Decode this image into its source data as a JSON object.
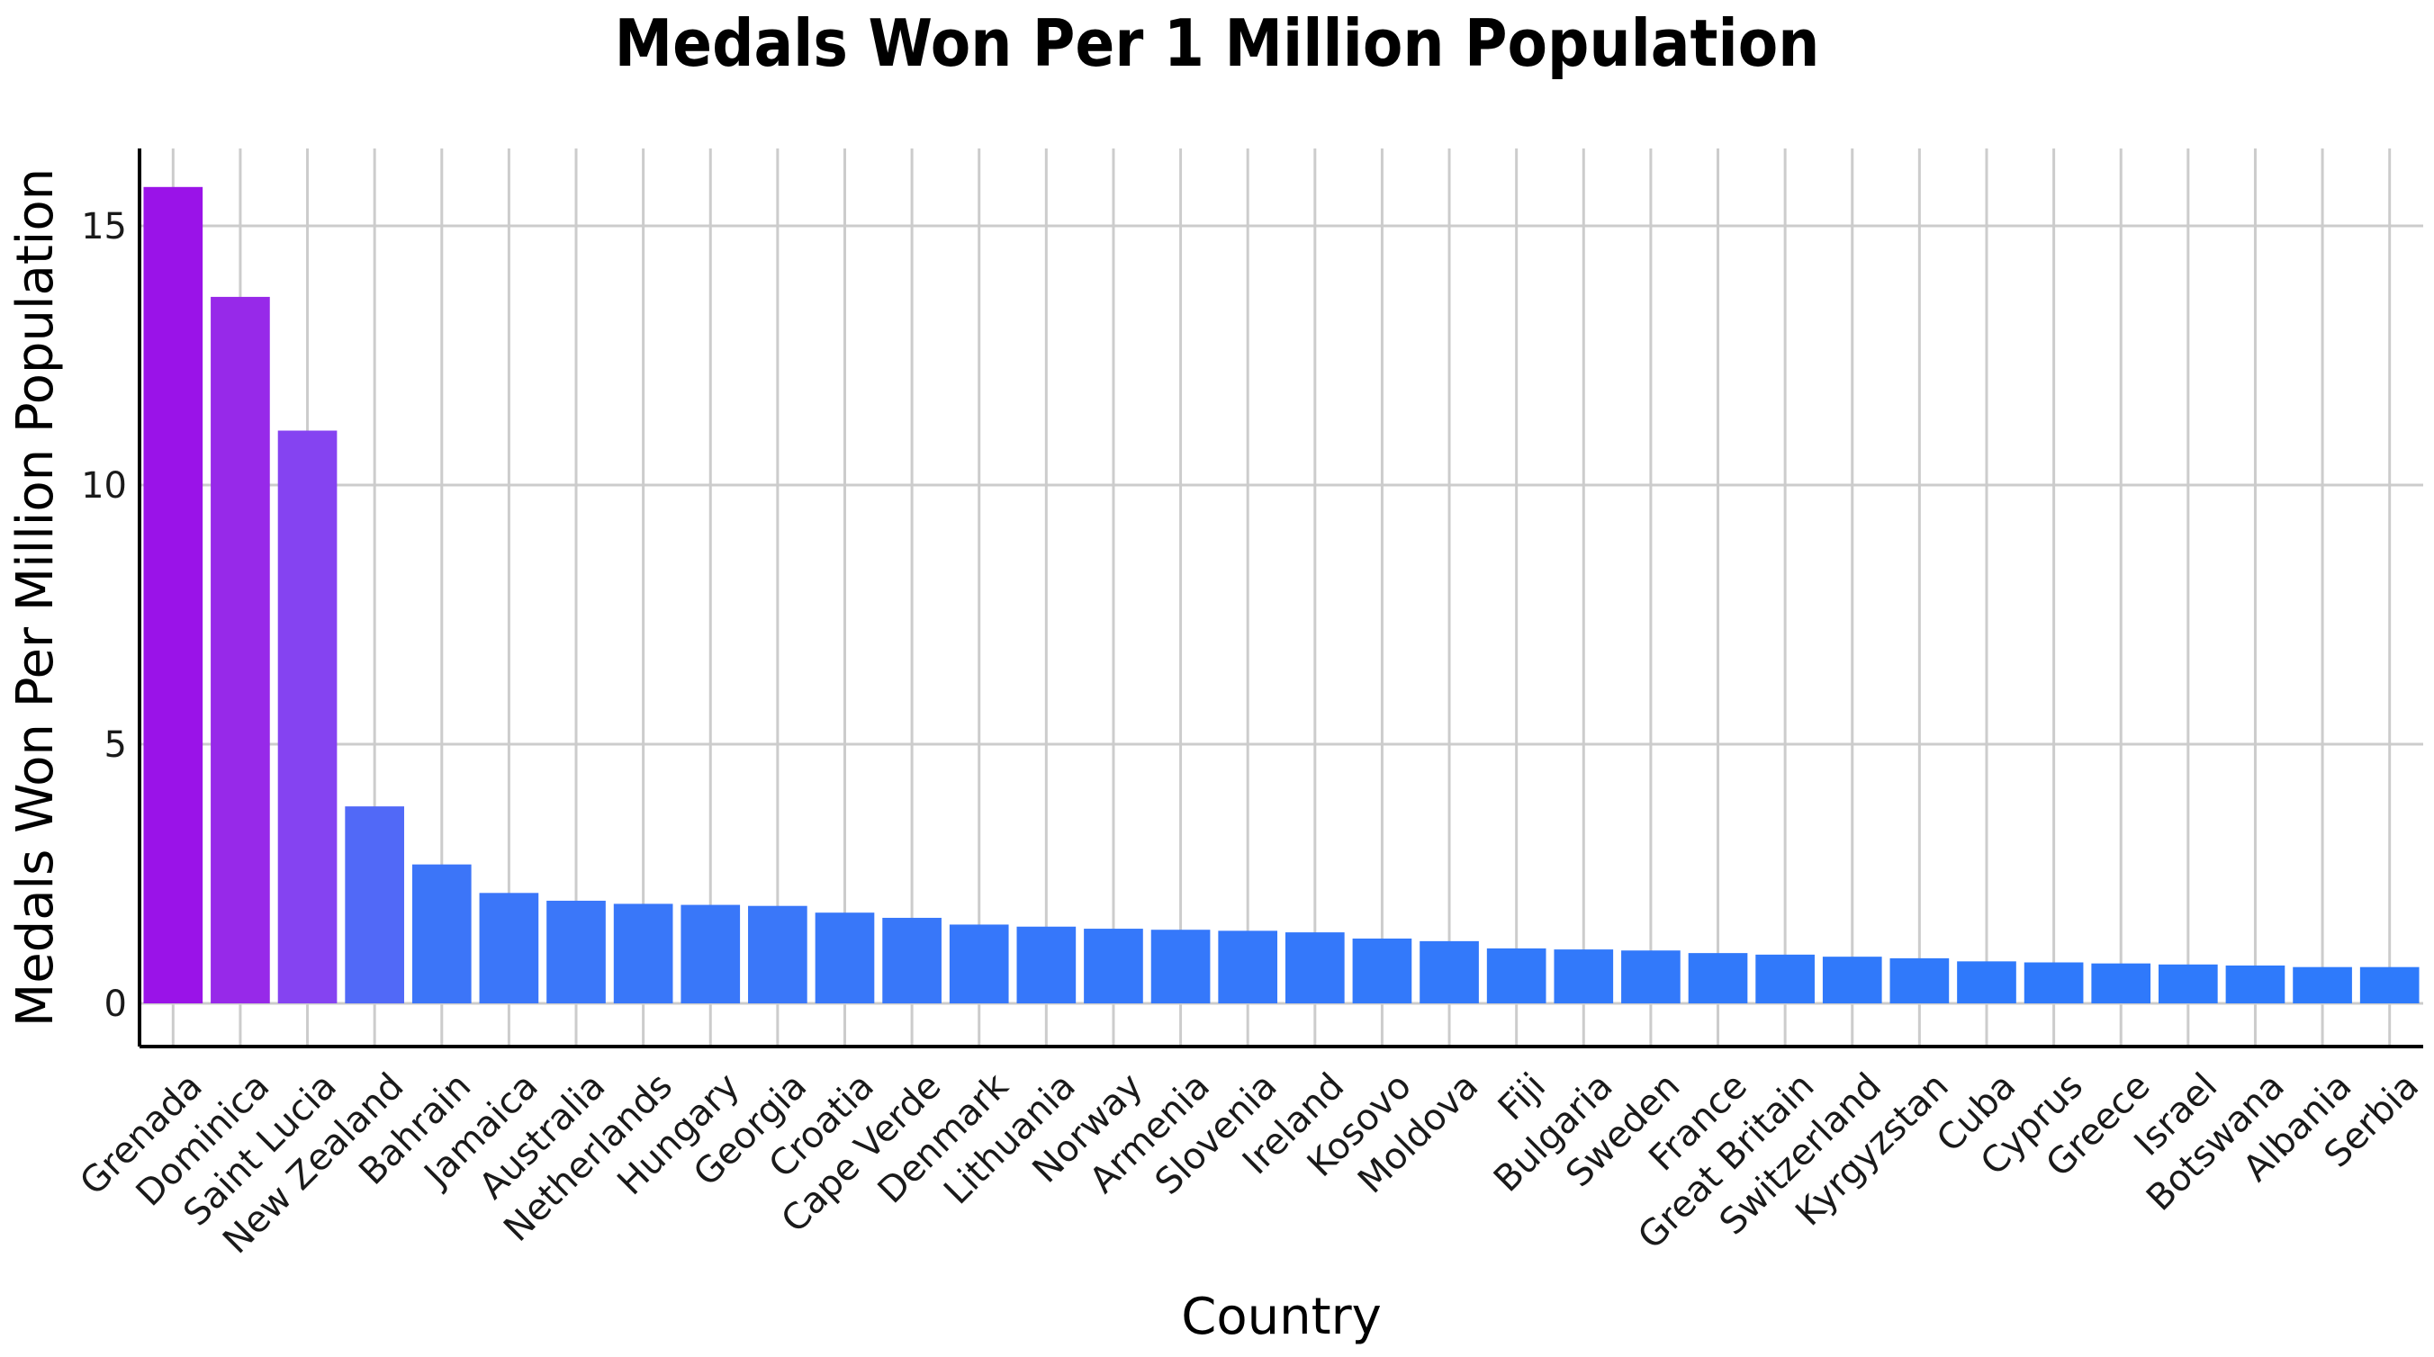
{
  "chart_data": {
    "type": "bar",
    "title": "Medals Won Per 1 Million Population",
    "xlabel": "Country",
    "ylabel": "Medals Won Per Million Population",
    "ylim": [
      0,
      16.5
    ],
    "yticks": [
      0,
      5,
      10,
      15
    ],
    "grid": true,
    "categories": [
      "Grenada",
      "Dominica",
      "Saint Lucia",
      "New Zealand",
      "Bahrain",
      "Jamaica",
      "Australia",
      "Netherlands",
      "Hungary",
      "Georgia",
      "Croatia",
      "Cape Verde",
      "Denmark",
      "Lithuania",
      "Norway",
      "Armenia",
      "Slovenia",
      "Ireland",
      "Kosovo",
      "Moldova",
      "Fiji",
      "Bulgaria",
      "Sweden",
      "France",
      "Great Britain",
      "Switzerland",
      "Kyrgyzstan",
      "Cuba",
      "Cyprus",
      "Greece",
      "Israel",
      "Botswana",
      "Albania",
      "Serbia"
    ],
    "values": [
      15.75,
      13.63,
      11.05,
      3.8,
      2.68,
      2.13,
      1.98,
      1.92,
      1.9,
      1.88,
      1.75,
      1.65,
      1.52,
      1.48,
      1.44,
      1.42,
      1.4,
      1.37,
      1.25,
      1.2,
      1.06,
      1.04,
      1.02,
      0.97,
      0.94,
      0.9,
      0.87,
      0.81,
      0.79,
      0.77,
      0.75,
      0.73,
      0.7,
      0.7
    ],
    "colors": [
      "#9a13e8",
      "#9729e9",
      "#8543f1",
      "#5169f7",
      "#3c75f8",
      "#3b76f9",
      "#3b77f9",
      "#3977f9",
      "#3977f9",
      "#3a77f9",
      "#3877f9",
      "#3877f9",
      "#3677fa",
      "#3677fa",
      "#3578fa",
      "#3578fa",
      "#3578fa",
      "#3478fa",
      "#3379fa",
      "#3379fa",
      "#3279fa",
      "#3279fa",
      "#3279fa",
      "#3179fa",
      "#3179fa",
      "#3079fa",
      "#3079fa",
      "#2f79fb",
      "#2f79fb",
      "#2f79fb",
      "#2f7afb",
      "#2f7afb",
      "#2e7afb",
      "#2e7afb"
    ],
    "grid_color": "#cccccc",
    "axis_color": "#000000"
  }
}
